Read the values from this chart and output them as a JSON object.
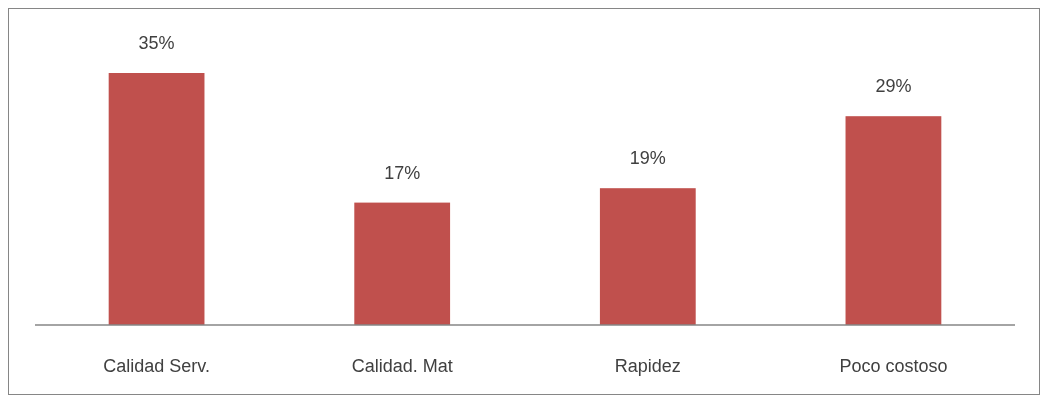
{
  "chart_data": {
    "type": "bar",
    "categories": [
      "Calidad Serv.",
      "Calidad. Mat",
      "Rapidez",
      "Poco costoso"
    ],
    "values": [
      35,
      17,
      19,
      29
    ],
    "value_labels": [
      "35%",
      "17%",
      "19%",
      "29%"
    ],
    "color": "#c0504d"
  }
}
